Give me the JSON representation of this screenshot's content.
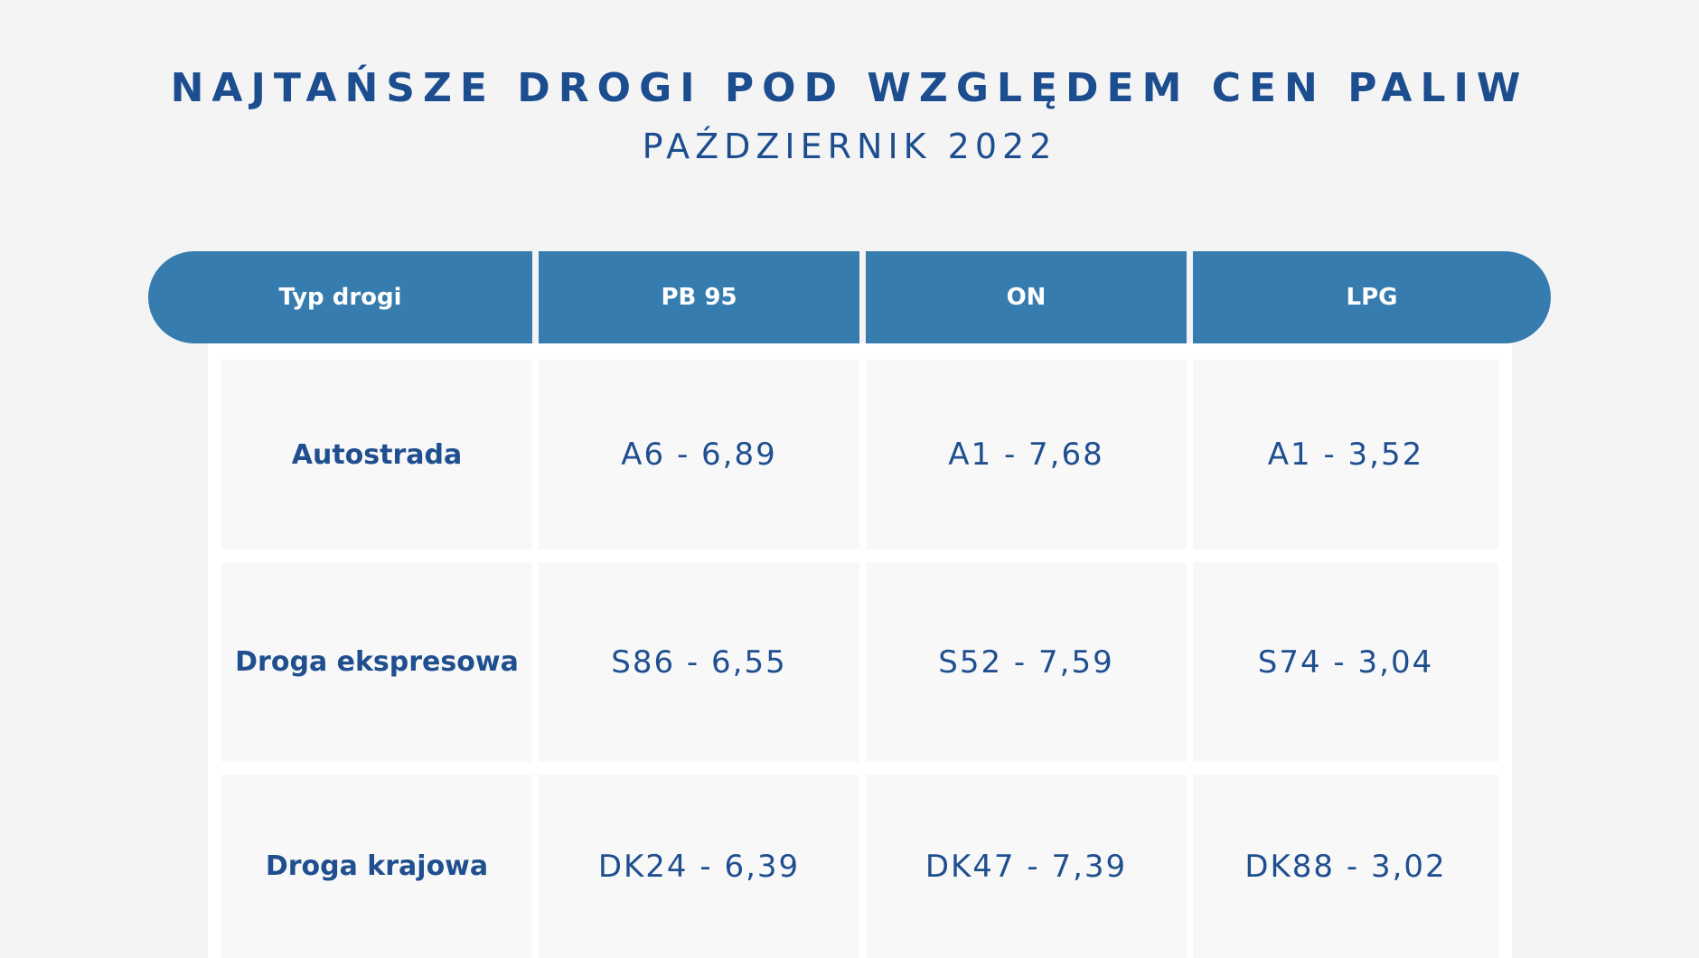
{
  "header": {
    "title": "NAJTAŃSZE DROGI POD WZGLĘDEM CEN PALIW",
    "subtitle": "PAŹDZIERNIK 2022"
  },
  "table": {
    "columns": [
      "Typ drogi",
      "PB 95",
      "ON",
      "LPG"
    ],
    "rows": [
      [
        "Autostrada",
        "A6 - 6,89",
        "A1 - 7,68",
        "A1 - 3,52"
      ],
      [
        "Droga ekspresowa",
        "S86 - 6,55",
        "S52 - 7,59",
        "S74 - 3,04"
      ],
      [
        "Droga krajowa",
        "DK24 - 6,39",
        "DK47 - 7,39",
        "DK88 - 3,02"
      ]
    ]
  }
}
